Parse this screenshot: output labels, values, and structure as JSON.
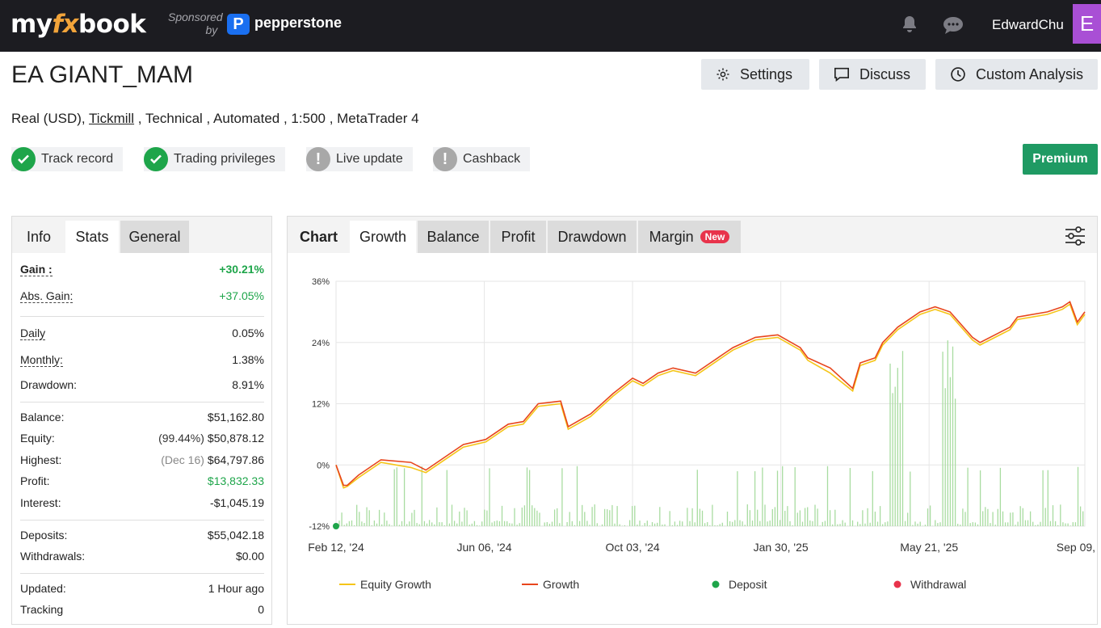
{
  "header": {
    "logo_my": "my",
    "logo_fx": "fx",
    "logo_book": "book",
    "sponsored_line1": "Sponsored",
    "sponsored_line2": "by",
    "sponsor_mark": "P",
    "sponsor_name": "pepperstone",
    "username": "EdwardChu",
    "avatar_letter": "E"
  },
  "page": {
    "title": "EA GIANT_MAM",
    "meta_prefix": "Real (USD), ",
    "meta_broker": "Tickmill",
    "meta_suffix": " , Technical , Automated , 1:500 , MetaTrader 4"
  },
  "actions": {
    "settings": "Settings",
    "discuss": "Discuss",
    "custom_analysis": "Custom Analysis",
    "premium": "Premium"
  },
  "badges": [
    {
      "label": "Track record",
      "status": "ok"
    },
    {
      "label": "Trading privileges",
      "status": "ok"
    },
    {
      "label": "Live update",
      "status": "warn"
    },
    {
      "label": "Cashback",
      "status": "warn"
    }
  ],
  "left_tabs": {
    "info": "Info",
    "stats": "Stats",
    "general": "General"
  },
  "stats": {
    "gain_label": "Gain :",
    "gain_value": "+30.21%",
    "abs_gain_label": "Abs. Gain:",
    "abs_gain_value": "+37.05%",
    "daily_label": "Daily",
    "daily_value": "0.05%",
    "monthly_label": "Monthly:",
    "monthly_value": "1.38%",
    "drawdown_label": "Drawdown:",
    "drawdown_value": "8.91%",
    "balance_label": "Balance:",
    "balance_value": "$51,162.80",
    "equity_label": "Equity:",
    "equity_sub": "(99.44%)",
    "equity_value": "$50,878.12",
    "highest_label": "Highest:",
    "highest_sub": "(Dec 16)",
    "highest_value": "$64,797.86",
    "profit_label": "Profit:",
    "profit_value": "$13,832.33",
    "interest_label": "Interest:",
    "interest_value": "-$1,045.19",
    "deposits_label": "Deposits:",
    "deposits_value": "$55,042.18",
    "withdrawals_label": "Withdrawals:",
    "withdrawals_value": "$0.00",
    "updated_label": "Updated:",
    "updated_value": "1 Hour ago",
    "tracking_label": "Tracking",
    "tracking_value": "0"
  },
  "chart_tabs": {
    "label": "Chart",
    "growth": "Growth",
    "balance": "Balance",
    "profit": "Profit",
    "drawdown": "Drawdown",
    "margin": "Margin",
    "new_badge": "New"
  },
  "colors": {
    "growth": "#e8451c",
    "equity": "#f5c518",
    "volume_bars": "#a8dca0",
    "deposit": "#1ea54a",
    "withdrawal": "#e8334b",
    "premium": "#1f9a63"
  },
  "chart_data": {
    "type": "line",
    "y_ticks": [
      "36%",
      "24%",
      "12%",
      "0%",
      "-12%"
    ],
    "ylim": [
      -12,
      36
    ],
    "x_ticks": [
      "Feb 12, '24",
      "Jun 06, '24",
      "Oct 03, '24",
      "Jan 30, '25",
      "May 21, '25",
      "Sep 09, '25"
    ],
    "x_tick_positions": [
      0,
      0.198,
      0.396,
      0.594,
      0.792,
      1.0
    ],
    "legend": [
      "Equity Growth",
      "Growth",
      "Deposit",
      "Withdrawal"
    ],
    "series": [
      {
        "name": "Growth",
        "x": [
          0,
          0.01,
          0.015,
          0.03,
          0.06,
          0.1,
          0.12,
          0.15,
          0.17,
          0.2,
          0.23,
          0.25,
          0.27,
          0.3,
          0.31,
          0.34,
          0.37,
          0.396,
          0.41,
          0.43,
          0.45,
          0.48,
          0.5,
          0.52,
          0.53,
          0.56,
          0.59,
          0.62,
          0.63,
          0.66,
          0.69,
          0.7,
          0.72,
          0.73,
          0.75,
          0.78,
          0.8,
          0.82,
          0.85,
          0.86,
          0.9,
          0.91,
          0.95,
          0.97,
          0.98,
          0.99,
          1.0
        ],
        "values": [
          0,
          -4,
          -4,
          -2,
          1,
          0.5,
          -1,
          2,
          4,
          5,
          8,
          8.5,
          12,
          12.5,
          7.5,
          10,
          14,
          17,
          16,
          18,
          19,
          18,
          20,
          22,
          23,
          25,
          25.5,
          23,
          21,
          19,
          15,
          20,
          21,
          24,
          27,
          30,
          31,
          30,
          25,
          24,
          27,
          29,
          30,
          31,
          32,
          28,
          30
        ]
      },
      {
        "name": "Equity Growth",
        "x": [
          0,
          0.01,
          0.015,
          0.03,
          0.06,
          0.1,
          0.12,
          0.15,
          0.17,
          0.2,
          0.23,
          0.25,
          0.27,
          0.3,
          0.31,
          0.34,
          0.37,
          0.396,
          0.41,
          0.43,
          0.45,
          0.48,
          0.5,
          0.52,
          0.53,
          0.56,
          0.59,
          0.62,
          0.63,
          0.66,
          0.69,
          0.7,
          0.72,
          0.73,
          0.75,
          0.78,
          0.8,
          0.82,
          0.85,
          0.86,
          0.9,
          0.91,
          0.95,
          0.97,
          0.98,
          0.99,
          1.0
        ],
        "values": [
          0,
          -4.5,
          -4.2,
          -2.5,
          0.5,
          -0.5,
          -1.5,
          1.5,
          3.5,
          4.5,
          7.5,
          8,
          11.5,
          12,
          7,
          9.5,
          13.5,
          16.5,
          15.5,
          17.5,
          18.5,
          17.5,
          19.5,
          21.5,
          22.5,
          24.5,
          25,
          22.5,
          20.5,
          18,
          14.5,
          19.5,
          20.5,
          23.5,
          26.5,
          29.5,
          30.5,
          29.5,
          24.5,
          23.5,
          26.5,
          28.5,
          29.5,
          30.5,
          31.5,
          27.5,
          29.5
        ]
      }
    ],
    "deposit_markers": [
      {
        "x": 0,
        "y": -12
      }
    ]
  }
}
